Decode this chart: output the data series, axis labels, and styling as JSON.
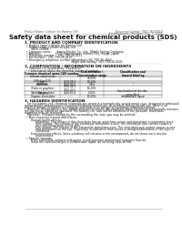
{
  "background": "#ffffff",
  "header_left": "Product Name: Lithium Ion Battery Cell",
  "header_right_line1": "Document Control: SDS-LIB-00010",
  "header_right_line2": "Establishment / Revision: Dec. 7, 2010",
  "title": "Safety data sheet for chemical products (SDS)",
  "section1_title": "1. PRODUCT AND COMPANY IDENTIFICATION",
  "section1_lines": [
    "  • Product name: Lithium Ion Battery Cell",
    "  • Product code: Cylindrical-type cell",
    "       SB16-100MA",
    "  • Company name:      Sanyo Electric Co., Ltd., Mobile Energy Company",
    "  • Address:                2001  Kamimunari, Sumoto City, Hyogo, Japan",
    "  • Telephone number:   +81-799-26-4111",
    "  • Fax number:  +81-799-26-4120",
    "  • Emergency telephone number (Weekday) +81-799-26-2662",
    "                                                   (Night and holiday) +81-799-26-4101"
  ],
  "section2_title": "2. COMPOSITION / INFORMATION ON INGREDIENTS",
  "section2_intro": "  • Substance or preparation: Preparation",
  "section2_sub": "    • Information about the chemical nature of product:",
  "table_col1_header": "Common chemical name",
  "table_col2_header": "CAS number",
  "table_col3_header": "Concentration /\nConcentration range",
  "table_col4_header": "Classification and\nhazard labeling",
  "table_rows": [
    [
      "Lithium cobalt oxide\n(LiMn-Coa1O2)",
      "-",
      "30-60%",
      "-"
    ],
    [
      "Iron",
      "7439-89-6",
      "10-20%",
      "-"
    ],
    [
      "Aluminum",
      "7429-90-5",
      "2-8%",
      "-"
    ],
    [
      "Graphite\n(Flake or graphite)\n(Artificial graphite)",
      "7782-42-5\n7782-42-5",
      "10-20%",
      "-"
    ],
    [
      "Copper",
      "7440-50-8",
      "5-15%",
      "Sensitization of the skin\ngroup No.2"
    ],
    [
      "Organic electrolyte",
      "-",
      "10-20%",
      "Inflammable liquid"
    ]
  ],
  "section3_title": "3. HAZARDS IDENTIFICATION",
  "section3_para1": [
    "   For the battery cell, chemical materials are stored in a hermetically sealed metal case, designed to withstand",
    "temperatures and pressures encountered during normal use. As a result, during normal use, there is no",
    "physical danger of ignition or explosion and there is no danger of hazardous materials leakage.",
    "   However, if exposed to a fire, added mechanical shocks, decomposed, when electrolyte occasionally misuses,",
    "the gas inside cannot be operated. The battery cell case will be breached of the pressure. Hazardous",
    "materials may be released.",
    "   Moreover, if heated strongly by the surrounding fire, toxic gas may be emitted."
  ],
  "section3_bullet1": "  • Most important hazard and effects:",
  "section3_human": "       Human health effects:",
  "section3_human_lines": [
    "            Inhalation: The release of the electrolyte has an anesthetic action and stimulates a respiratory tract.",
    "            Skin contact: The release of the electrolyte stimulates a skin. The electrolyte skin contact causes a",
    "            sore and stimulation on the skin.",
    "            Eye contact: The release of the electrolyte stimulates eyes. The electrolyte eye contact causes a sore",
    "            and stimulation on the eye. Especially, a substance that causes a strong inflammation of the eyes is",
    "            contained."
  ],
  "section3_env": "       Environmental effects: Since a battery cell remains in the environment, do not throw out it into the",
  "section3_env2": "            environment.",
  "section3_bullet2": "  • Specific hazards:",
  "section3_specific": [
    "       If the electrolyte contacts with water, it will generate detrimental hydrogen fluoride.",
    "       Since the said electrolyte is inflammable liquid, do not bring close to fire."
  ]
}
